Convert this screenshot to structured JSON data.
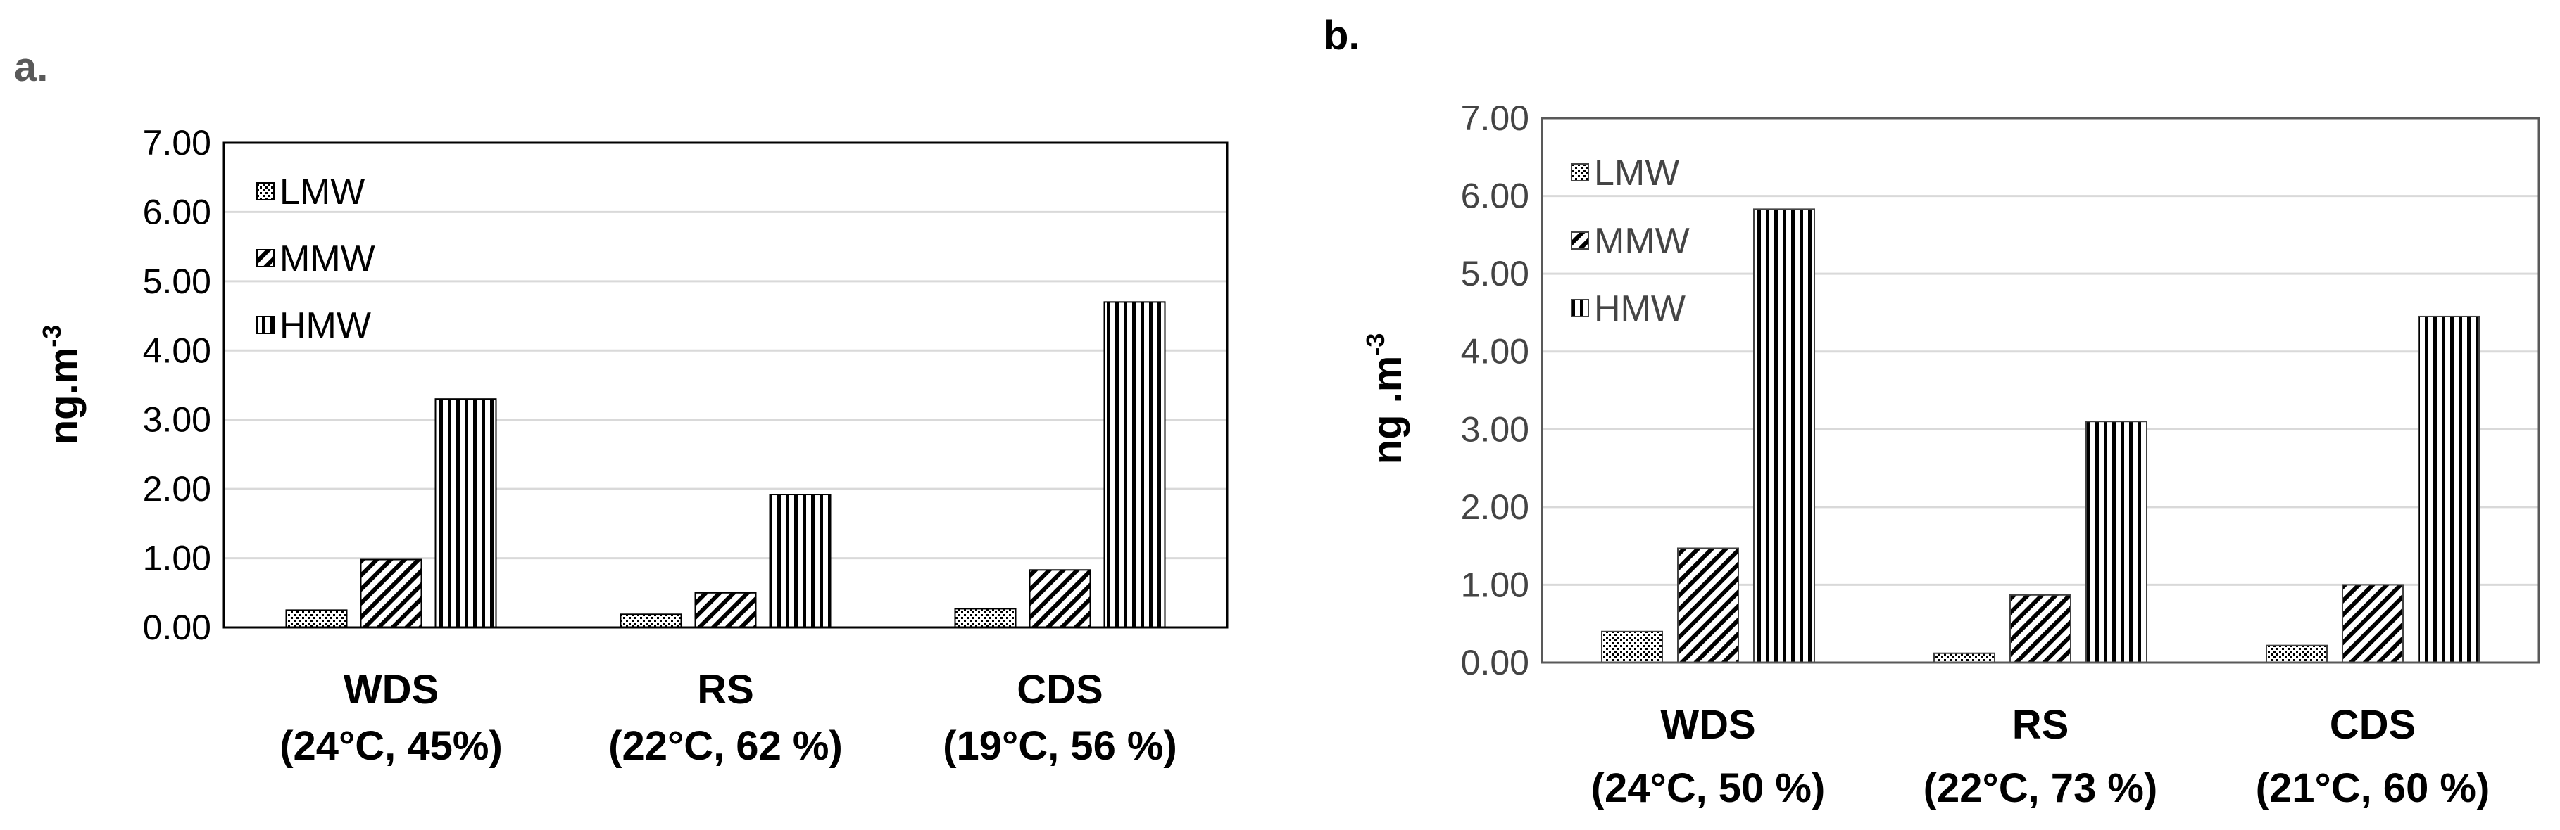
{
  "colors": {
    "axis": "#000000",
    "gridline": "#d9d9d9",
    "plot_border_a": "#000000",
    "plot_border_b": "#595959",
    "panel_label": "#595959",
    "text": "#000000",
    "bar_fill": "#ffffff"
  },
  "chart_data": [
    {
      "panel_label": "a.",
      "type": "bar",
      "ylabel_base": "ng.m",
      "ylabel_exp": "-3",
      "ylim": [
        0,
        7
      ],
      "yticks": [
        "0.00",
        "1.00",
        "2.00",
        "3.00",
        "4.00",
        "5.00",
        "6.00",
        "7.00"
      ],
      "grid": true,
      "legend_position": "top-left",
      "categories": [
        {
          "name": "WDS",
          "conditions": "(24°C, 45%)"
        },
        {
          "name": "RS",
          "conditions": "(22°C, 62 %)"
        },
        {
          "name": "CDS",
          "conditions": "(19°C, 56 %)"
        }
      ],
      "series": [
        {
          "name": "LMW",
          "pattern": "dots",
          "values": [
            0.25,
            0.19,
            0.27
          ]
        },
        {
          "name": "MMW",
          "pattern": "diagonal",
          "values": [
            0.98,
            0.5,
            0.83
          ]
        },
        {
          "name": "HMW",
          "pattern": "vertical",
          "values": [
            3.3,
            1.92,
            4.7
          ]
        }
      ]
    },
    {
      "panel_label": "b.",
      "type": "bar",
      "ylabel_base": "ng .m",
      "ylabel_exp": "-3",
      "ylim": [
        0,
        7
      ],
      "yticks": [
        "0.00",
        "1.00",
        "2.00",
        "3.00",
        "4.00",
        "5.00",
        "6.00",
        "7.00"
      ],
      "grid": true,
      "legend_position": "top-left",
      "categories": [
        {
          "name": "WDS",
          "conditions": "(24°C, 50 %)"
        },
        {
          "name": "RS",
          "conditions": "(22°C, 73 %)"
        },
        {
          "name": "CDS",
          "conditions": "(21°C, 60 %)"
        }
      ],
      "series": [
        {
          "name": "LMW",
          "pattern": "dots",
          "values": [
            0.4,
            0.12,
            0.22
          ]
        },
        {
          "name": "MMW",
          "pattern": "diagonal",
          "values": [
            1.47,
            0.87,
            1.0
          ]
        },
        {
          "name": "HMW",
          "pattern": "vertical",
          "values": [
            5.83,
            3.1,
            4.45
          ]
        }
      ]
    }
  ]
}
